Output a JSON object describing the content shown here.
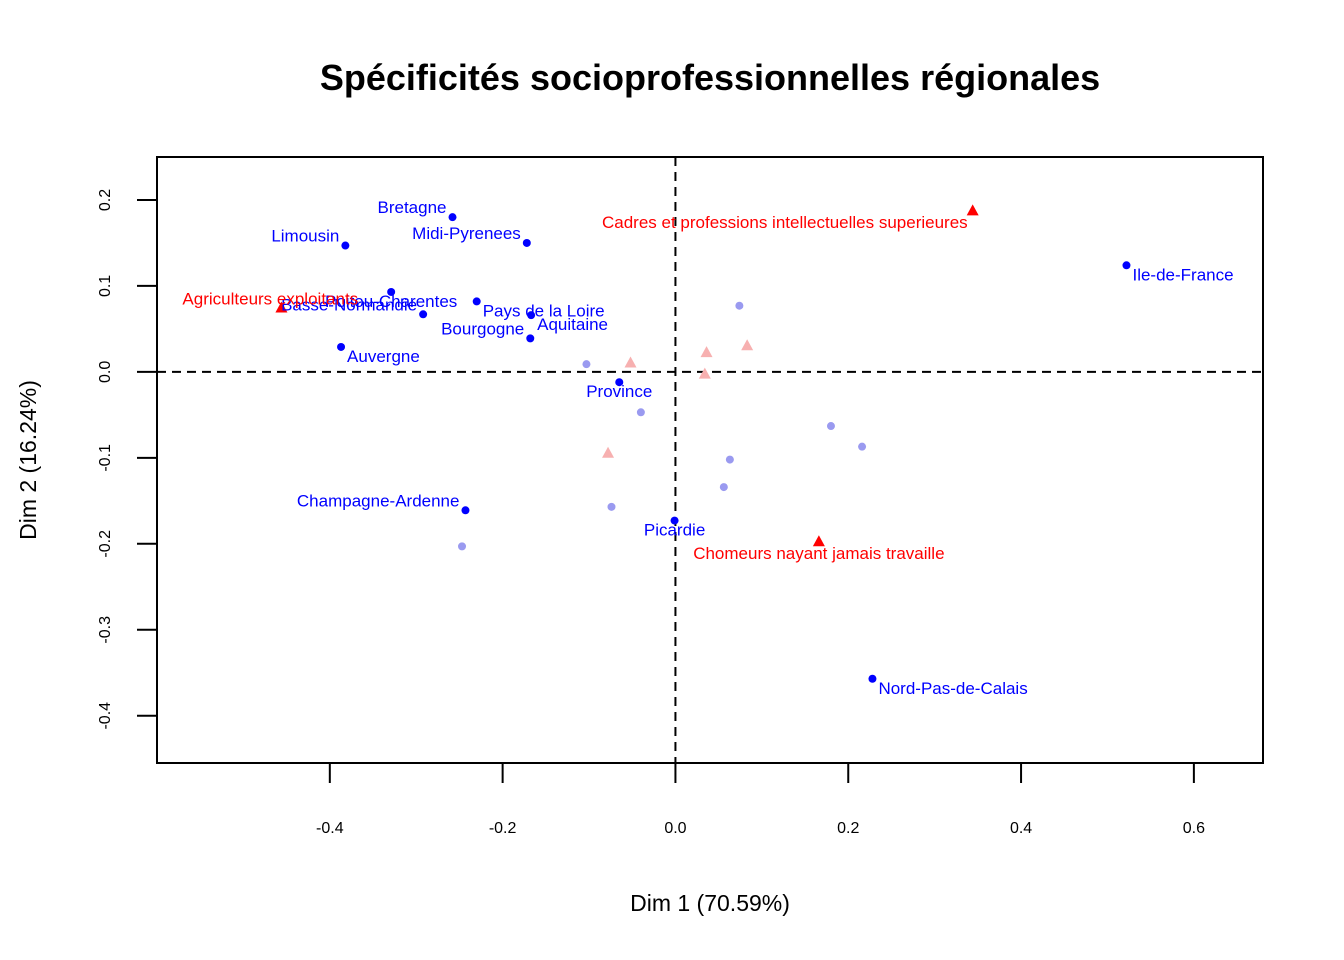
{
  "chart_data": {
    "type": "scatter",
    "title": "Spécificités socioprofessionnelles régionales",
    "xlabel": "Dim 1 (70.59%)",
    "ylabel": "Dim 2 (16.24%)",
    "xlim": [
      -0.6,
      0.68
    ],
    "ylim": [
      -0.455,
      0.25
    ],
    "xticks": [
      -0.4,
      -0.2,
      0.0,
      0.2,
      0.4,
      0.6
    ],
    "xtick_labels": [
      "-0.4",
      "-0.2",
      "0.0",
      "0.2",
      "0.4",
      "0.6"
    ],
    "yticks": [
      -0.4,
      -0.3,
      -0.2,
      -0.1,
      0.0,
      0.1,
      0.2
    ],
    "ytick_labels": [
      "-0.4",
      "-0.3",
      "-0.2",
      "-0.1",
      "0.0",
      "0.1",
      "0.2"
    ],
    "grid": false,
    "reference_lines": {
      "x": 0,
      "y": 0,
      "style": "dashed"
    },
    "colors": {
      "rows": "#0000ff",
      "rows_faded": "#9a9af0",
      "cols": "#ff0000",
      "cols_faded": "#f7b0b0"
    },
    "series": [
      {
        "marker": "circle",
        "color": "#0000ff",
        "points": [
          {
            "label": "Bretagne",
            "x": -0.258,
            "y": 0.18,
            "anchor": "end"
          },
          {
            "label": "Midi-Pyrenees",
            "x": -0.172,
            "y": 0.15,
            "anchor": "end"
          },
          {
            "label": "Limousin",
            "x": -0.382,
            "y": 0.147,
            "anchor": "end"
          },
          {
            "label": "Poitou-Charentes",
            "x": -0.329,
            "y": 0.093,
            "anchor": "middle"
          },
          {
            "label": "Pays de la Loire",
            "x": -0.23,
            "y": 0.082,
            "anchor": "start"
          },
          {
            "label": "Basse-Normandie",
            "x": -0.292,
            "y": 0.067,
            "anchor": "end"
          },
          {
            "label": "Aquitaine",
            "x": -0.167,
            "y": 0.066,
            "anchor": "start"
          },
          {
            "label": "Bourgogne",
            "x": -0.168,
            "y": 0.039,
            "anchor": "end"
          },
          {
            "label": "Auvergne",
            "x": -0.387,
            "y": 0.029,
            "anchor": "start"
          },
          {
            "label": "Province",
            "x": -0.065,
            "y": -0.012,
            "anchor": "middle"
          },
          {
            "label": "Ile-de-France",
            "x": 0.522,
            "y": 0.124,
            "anchor": "start"
          },
          {
            "label": "Champagne-Ardenne",
            "x": -0.243,
            "y": -0.161,
            "anchor": "end"
          },
          {
            "label": "Picardie",
            "x": -0.001,
            "y": -0.173,
            "anchor": "middle"
          },
          {
            "label": "Nord-Pas-de-Calais",
            "x": 0.228,
            "y": -0.357,
            "anchor": "start"
          }
        ]
      },
      {
        "marker": "triangle",
        "color": "#ff0000",
        "points": [
          {
            "label": "Cadres et professions intellectuelles superieures",
            "x": 0.344,
            "y": 0.187,
            "anchor": "end"
          },
          {
            "label": "Agriculteurs exploitants",
            "x": -0.456,
            "y": 0.074,
            "anchor": "start"
          },
          {
            "label": "Chomeurs nayant jamais travaille",
            "x": 0.166,
            "y": -0.198,
            "anchor": "middle"
          }
        ]
      },
      {
        "marker": "circle",
        "color": "#9a9af0",
        "points": [
          {
            "x": 0.074,
            "y": 0.077
          },
          {
            "x": -0.103,
            "y": 0.009
          },
          {
            "x": -0.04,
            "y": -0.047
          },
          {
            "x": 0.18,
            "y": -0.063
          },
          {
            "x": 0.216,
            "y": -0.087
          },
          {
            "x": 0.063,
            "y": -0.102
          },
          {
            "x": 0.056,
            "y": -0.134
          },
          {
            "x": -0.074,
            "y": -0.157
          },
          {
            "x": -0.247,
            "y": -0.203
          }
        ]
      },
      {
        "marker": "triangle",
        "color": "#f7b0b0",
        "points": [
          {
            "x": -0.052,
            "y": 0.01
          },
          {
            "x": 0.036,
            "y": 0.022
          },
          {
            "x": 0.083,
            "y": 0.03
          },
          {
            "x": 0.034,
            "y": -0.003
          },
          {
            "x": -0.078,
            "y": -0.095
          }
        ]
      }
    ]
  }
}
